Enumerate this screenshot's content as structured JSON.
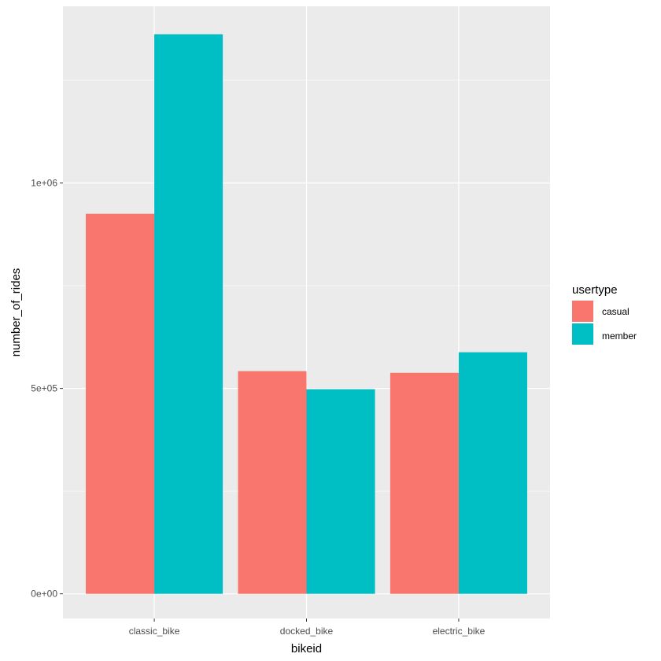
{
  "chart_data": {
    "type": "bar",
    "xlabel": "bikeid",
    "ylabel": "number_of_rides",
    "categories": [
      "classic_bike",
      "docked_bike",
      "electric_bike"
    ],
    "series": [
      {
        "name": "casual",
        "color": "#F8766D",
        "values": [
          925000,
          542000,
          538000
        ]
      },
      {
        "name": "member",
        "color": "#00BFC4",
        "values": [
          1362000,
          498000,
          588000
        ]
      }
    ],
    "ylim": [
      -60000,
      1430000
    ],
    "yticks": [
      0,
      500000,
      1000000
    ],
    "ytick_labels": [
      "0e+00",
      "5e+05",
      "1e+06"
    ],
    "legend": {
      "title": "usertype",
      "position": "right"
    },
    "grid": true,
    "panel_background": "#EBEBEB"
  }
}
